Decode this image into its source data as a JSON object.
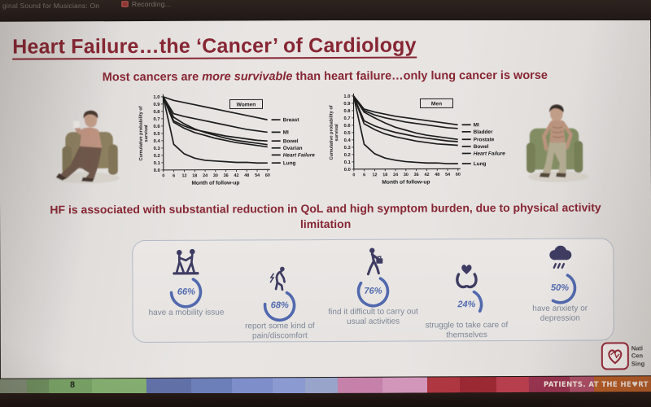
{
  "meeting_bar": {
    "audio_status": "ginal Sound for Musicians: On",
    "recording_label": "Recording...",
    "recording_icon_color": "#a8322c"
  },
  "slide": {
    "title": "Heart Failure…the ‘Cancer’ of Cardiology",
    "title_color": "#8e2130",
    "subtitle_part1": "Most cancers are ",
    "subtitle_italic": "more survivable",
    "subtitle_part2": " than heart failure…only lung cancer is worse",
    "statement": "HF is associated with substantial reduction in QoL and high symptom burden, due to physical activity limitation",
    "page_number": "8"
  },
  "chart_data": [
    {
      "type": "line",
      "title": "Women",
      "xlabel": "Month of follow-up",
      "ylabel": "Cumulative probability of survival",
      "x": [
        0,
        6,
        12,
        18,
        24,
        30,
        36,
        42,
        48,
        54,
        60
      ],
      "ylim": [
        0.0,
        1.0
      ],
      "ytick_step": 0.1,
      "legend_position": "top-right-box",
      "line_color": "#1a1a1a",
      "series": [
        {
          "name": "Breast",
          "emphasis": false,
          "values": [
            1.0,
            0.95,
            0.92,
            0.89,
            0.86,
            0.83,
            0.8,
            0.77,
            0.74,
            0.71,
            0.68
          ]
        },
        {
          "name": "MI",
          "emphasis": false,
          "values": [
            1.0,
            0.77,
            0.73,
            0.7,
            0.67,
            0.64,
            0.61,
            0.58,
            0.55,
            0.53,
            0.51
          ]
        },
        {
          "name": "Bowel",
          "emphasis": false,
          "values": [
            1.0,
            0.67,
            0.6,
            0.55,
            0.52,
            0.49,
            0.46,
            0.44,
            0.42,
            0.4,
            0.39
          ]
        },
        {
          "name": "Ovarian",
          "emphasis": false,
          "values": [
            1.0,
            0.72,
            0.63,
            0.56,
            0.51,
            0.47,
            0.43,
            0.4,
            0.38,
            0.36,
            0.34
          ]
        },
        {
          "name": "Heart Failure",
          "emphasis": true,
          "values": [
            1.0,
            0.65,
            0.57,
            0.51,
            0.47,
            0.43,
            0.4,
            0.37,
            0.35,
            0.33,
            0.31
          ]
        },
        {
          "name": "Lung",
          "emphasis": false,
          "values": [
            1.0,
            0.35,
            0.22,
            0.16,
            0.13,
            0.12,
            0.11,
            0.1,
            0.1,
            0.09,
            0.09
          ]
        }
      ]
    },
    {
      "type": "line",
      "title": "Men",
      "xlabel": "Month of follow-up",
      "ylabel": "Cumulative probability of survival",
      "x": [
        0,
        6,
        12,
        18,
        24,
        30,
        36,
        42,
        48,
        54,
        60
      ],
      "ylim": [
        0.0,
        1.0
      ],
      "ytick_step": 0.1,
      "legend_position": "top-right-box",
      "line_color": "#1a1a1a",
      "series": [
        {
          "name": "MI",
          "emphasis": false,
          "values": [
            1.0,
            0.82,
            0.78,
            0.75,
            0.72,
            0.7,
            0.68,
            0.66,
            0.64,
            0.62,
            0.6
          ]
        },
        {
          "name": "Bladder",
          "emphasis": false,
          "values": [
            1.0,
            0.8,
            0.74,
            0.7,
            0.67,
            0.64,
            0.62,
            0.6,
            0.58,
            0.56,
            0.55
          ]
        },
        {
          "name": "Prostate",
          "emphasis": false,
          "values": [
            1.0,
            0.78,
            0.7,
            0.63,
            0.57,
            0.53,
            0.49,
            0.46,
            0.44,
            0.42,
            0.4
          ]
        },
        {
          "name": "Bowel",
          "emphasis": false,
          "values": [
            1.0,
            0.66,
            0.59,
            0.54,
            0.5,
            0.47,
            0.44,
            0.42,
            0.4,
            0.38,
            0.37
          ]
        },
        {
          "name": "Heart Failure",
          "emphasis": true,
          "values": [
            1.0,
            0.62,
            0.54,
            0.48,
            0.44,
            0.41,
            0.38,
            0.36,
            0.34,
            0.33,
            0.32
          ]
        },
        {
          "name": "Lung",
          "emphasis": false,
          "values": [
            1.0,
            0.34,
            0.21,
            0.15,
            0.12,
            0.1,
            0.09,
            0.08,
            0.08,
            0.07,
            0.07
          ]
        }
      ]
    }
  ],
  "stats": {
    "ring_color": "#4d68b5",
    "icon_color": "#3c3a64",
    "items": [
      {
        "percent": "66%",
        "value": 66,
        "label": "have a mobility issue",
        "icon": "mobility-icon"
      },
      {
        "percent": "68%",
        "value": 68,
        "label": "report some kind of pain/discomfort",
        "icon": "pain-icon"
      },
      {
        "percent": "76%",
        "value": 76,
        "label": "find it difficult to carry out usual activities",
        "icon": "activities-icon"
      },
      {
        "percent": "24%",
        "value": 24,
        "label": "struggle to take care of themselves",
        "icon": "selfcare-icon"
      },
      {
        "percent": "50%",
        "value": 50,
        "label": "have anxiety or depression",
        "icon": "anxiety-icon"
      }
    ]
  },
  "footer": {
    "tagline": "PATIENTS. AT THE HE♥RT",
    "logo_lines": [
      "Nati",
      "Cen",
      "Sing"
    ],
    "logo_heart_color": "#a02536",
    "strip_colors": [
      {
        "color": "#7d8a72",
        "width": 33
      },
      {
        "color": "#6a8f5a",
        "width": 27
      },
      {
        "color": "#74a360",
        "width": 53
      },
      {
        "color": "#82b06b",
        "width": 67
      },
      {
        "color": "#5f71ad",
        "width": 55
      },
      {
        "color": "#6a7fc0",
        "width": 50
      },
      {
        "color": "#7b8ed2",
        "width": 50
      },
      {
        "color": "#8a9bd8",
        "width": 40
      },
      {
        "color": "#98a5cf",
        "width": 40
      },
      {
        "color": "#cd7fae",
        "width": 55
      },
      {
        "color": "#d795bd",
        "width": 55
      },
      {
        "color": "#b9323e",
        "width": 40
      },
      {
        "color": "#a3242f",
        "width": 45
      },
      {
        "color": "#c13a4a",
        "width": 40
      },
      {
        "color": "#9e2f4e",
        "width": 50
      },
      {
        "color": "#b54b66",
        "width": 30
      },
      {
        "color": "#bf5a1f",
        "width": 70
      }
    ]
  }
}
